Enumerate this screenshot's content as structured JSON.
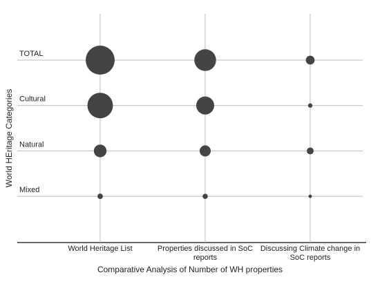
{
  "chart_data": {
    "type": "bubble",
    "x_label": "Comparative Analysis of Number of WH properties",
    "y_label": "World HEritage Categories",
    "categories": [
      "World Heritage List",
      "Properties discussed in SoC reports",
      "Discussing Climate change in SoC reports"
    ],
    "color": "#444444",
    "series": [
      {
        "name": "TOTAL",
        "values": [
          1092,
          615,
          100
        ]
      },
      {
        "name": "Cultural",
        "values": [
          845,
          420,
          25
        ]
      },
      {
        "name": "Natural",
        "values": [
          209,
          160,
          60
        ]
      },
      {
        "name": "Mixed",
        "values": [
          38,
          35,
          15
        ]
      }
    ]
  }
}
